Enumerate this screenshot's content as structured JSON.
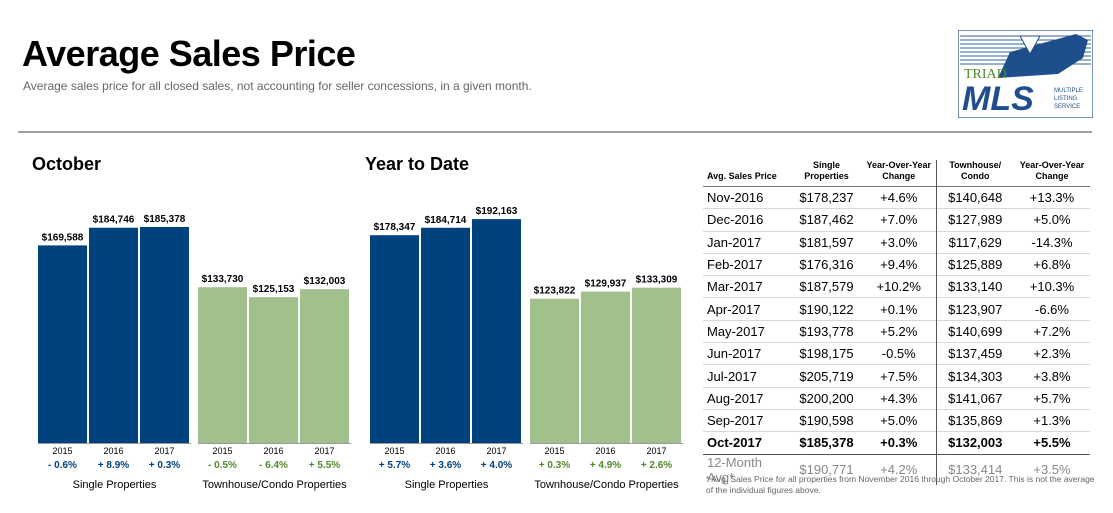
{
  "header": {
    "title": "Average Sales Price",
    "subtitle": "Average sales price for all closed sales, not accounting for seller concessions, in a given month."
  },
  "logo": {
    "line1": "TRIAD",
    "line2": "MLS",
    "line3": "MULTIPLE",
    "line4": "LISTING",
    "line5": "SERVICE"
  },
  "colors": {
    "single": "#00427e",
    "townhouse": "#a2c08b",
    "pos_change": "#00427e",
    "neg_change": "#4f8a2b"
  },
  "chart_data": [
    {
      "type": "bar",
      "title": "October",
      "groups": [
        {
          "name": "Single Properties",
          "categories": [
            "2015",
            "2016",
            "2017"
          ],
          "values": [
            169588,
            184746,
            185378
          ],
          "labels": [
            "$169,588",
            "$184,746",
            "$185,378"
          ],
          "changes": [
            "- 0.6%",
            "+ 8.9%",
            "+ 0.3%"
          ]
        },
        {
          "name": "Townhouse/Condo Properties",
          "categories": [
            "2015",
            "2016",
            "2017"
          ],
          "values": [
            133730,
            125153,
            132003
          ],
          "labels": [
            "$133,730",
            "$125,153",
            "$132,003"
          ],
          "changes": [
            "- 0.5%",
            "- 6.4%",
            "+ 5.5%"
          ]
        }
      ]
    },
    {
      "type": "bar",
      "title": "Year to Date",
      "groups": [
        {
          "name": "Single Properties",
          "categories": [
            "2015",
            "2016",
            "2017"
          ],
          "values": [
            178347,
            184714,
            192163
          ],
          "labels": [
            "$178,347",
            "$184,714",
            "$192,163"
          ],
          "changes": [
            "+ 5.7%",
            "+ 3.6%",
            "+ 4.0%"
          ]
        },
        {
          "name": "Townhouse/Condo Properties",
          "categories": [
            "2015",
            "2016",
            "2017"
          ],
          "values": [
            123822,
            129937,
            133309
          ],
          "labels": [
            "$123,822",
            "$129,937",
            "$133,309"
          ],
          "changes": [
            "+ 0.3%",
            "+ 4.9%",
            "+ 2.6%"
          ]
        }
      ]
    },
    {
      "type": "table",
      "headers": [
        "Avg. Sales Price",
        "Single\nProperties",
        "Year-Over-Year\nChange",
        "Townhouse/\nCondo",
        "Year-Over-Year\nChange"
      ],
      "rows": [
        [
          "Nov-2016",
          "$178,237",
          "+4.6%",
          "$140,648",
          "+13.3%"
        ],
        [
          "Dec-2016",
          "$187,462",
          "+7.0%",
          "$127,989",
          "+5.0%"
        ],
        [
          "Jan-2017",
          "$181,597",
          "+3.0%",
          "$117,629",
          "-14.3%"
        ],
        [
          "Feb-2017",
          "$176,316",
          "+9.4%",
          "$125,889",
          "+6.8%"
        ],
        [
          "Mar-2017",
          "$187,579",
          "+10.2%",
          "$133,140",
          "+10.3%"
        ],
        [
          "Apr-2017",
          "$190,122",
          "+0.1%",
          "$123,907",
          "-6.6%"
        ],
        [
          "May-2017",
          "$193,778",
          "+5.2%",
          "$140,699",
          "+7.2%"
        ],
        [
          "Jun-2017",
          "$198,175",
          "-0.5%",
          "$137,459",
          "+2.3%"
        ],
        [
          "Jul-2017",
          "$205,719",
          "+7.5%",
          "$134,303",
          "+3.8%"
        ],
        [
          "Aug-2017",
          "$200,200",
          "+4.3%",
          "$141,067",
          "+5.7%"
        ],
        [
          "Sep-2017",
          "$190,598",
          "+5.0%",
          "$135,869",
          "+1.3%"
        ],
        [
          "Oct-2017",
          "$185,378",
          "+0.3%",
          "$132,003",
          "+5.5%"
        ]
      ],
      "avg_row": [
        "12-Month Avg*",
        "$190,771",
        "+4.2%",
        "$133,414",
        "+3.5%"
      ]
    }
  ],
  "footnote": "* Avg. Sales Price for all properties from November 2016 through October 2017. This is not the average of the individual figures above."
}
